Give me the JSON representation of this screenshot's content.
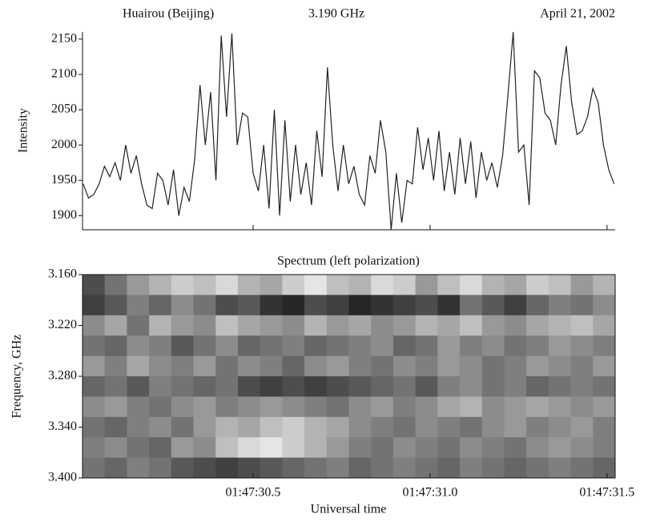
{
  "chart_data": [
    {
      "type": "line",
      "annotations": [
        "Huairou (Beijing)",
        "3.190 GHz",
        "April 21, 2002"
      ],
      "ylabel": "Intensity",
      "x": [
        30.02,
        30.035,
        30.05,
        30.065,
        30.08,
        30.095,
        30.11,
        30.125,
        30.14,
        30.155,
        30.17,
        30.185,
        30.2,
        30.215,
        30.23,
        30.245,
        30.26,
        30.275,
        30.29,
        30.305,
        30.32,
        30.335,
        30.35,
        30.365,
        30.38,
        30.395,
        30.41,
        30.425,
        30.44,
        30.455,
        30.47,
        30.485,
        30.5,
        30.515,
        30.53,
        30.545,
        30.56,
        30.575,
        30.59,
        30.605,
        30.62,
        30.635,
        30.65,
        30.665,
        30.68,
        30.695,
        30.71,
        30.725,
        30.74,
        30.755,
        30.77,
        30.785,
        30.8,
        30.815,
        30.83,
        30.845,
        30.86,
        30.875,
        30.89,
        30.905,
        30.92,
        30.935,
        30.95,
        30.965,
        30.98,
        30.995,
        31.01,
        31.025,
        31.04,
        31.055,
        31.07,
        31.085,
        31.1,
        31.115,
        31.13,
        31.145,
        31.16,
        31.175,
        31.19,
        31.205,
        31.22,
        31.235,
        31.25,
        31.265,
        31.28,
        31.295,
        31.31,
        31.325,
        31.34,
        31.355,
        31.37,
        31.385,
        31.4,
        31.415,
        31.43,
        31.445,
        31.46,
        31.475,
        31.49,
        31.505,
        31.52
      ],
      "series": [
        {
          "color": "#222222",
          "values": [
            1945,
            1925,
            1930,
            1945,
            1970,
            1955,
            1975,
            1950,
            2000,
            1960,
            1985,
            1945,
            1915,
            1910,
            1960,
            1950,
            1915,
            1965,
            1900,
            1940,
            1920,
            1980,
            2085,
            2000,
            2075,
            1950,
            2155,
            2040,
            2158,
            2000,
            2045,
            2040,
            1960,
            1935,
            2000,
            1910,
            2050,
            1900,
            2035,
            1920,
            2000,
            1930,
            1975,
            1915,
            2020,
            1955,
            2110,
            2000,
            1935,
            2000,
            1945,
            1970,
            1930,
            1915,
            1985,
            1960,
            2035,
            1990,
            1880,
            1960,
            1890,
            1950,
            1945,
            2025,
            1965,
            2010,
            1950,
            2020,
            1935,
            1990,
            1930,
            2010,
            1945,
            2005,
            1925,
            1990,
            1950,
            1975,
            1940,
            1985,
            2070,
            2160,
            1990,
            2000,
            1915,
            2105,
            2095,
            2045,
            2035,
            2000,
            2085,
            2140,
            2060,
            2015,
            2020,
            2040,
            2080,
            2060,
            2000,
            1965,
            1945
          ]
        }
      ],
      "xlim": [
        30.018,
        31.523
      ],
      "xticks": [
        30.5,
        31.0,
        31.5
      ],
      "ylim": [
        1880,
        2160
      ],
      "yticks": [
        1900,
        1950,
        2000,
        2050,
        2100,
        2150
      ]
    },
    {
      "type": "heatmap",
      "title": "Spectrum (left polarization)",
      "xlabel": "Universal time",
      "ylabel": "Frequency, GHz",
      "colormap": "gray",
      "xlim": [
        30.018,
        31.523
      ],
      "xticks": [
        {
          "value": 30.5,
          "label": "01:47:30.5"
        },
        {
          "value": 31.0,
          "label": "01:47:31.0"
        },
        {
          "value": 31.5,
          "label": "01:47:31.5"
        }
      ],
      "ylim": [
        3.4,
        3.16
      ],
      "yticks": [
        {
          "value": 3.16,
          "label": "3.160"
        },
        {
          "value": 3.22,
          "label": "3.220"
        },
        {
          "value": 3.28,
          "label": "3.280"
        },
        {
          "value": 3.34,
          "label": "3.340"
        },
        {
          "value": 3.4,
          "label": "3.400"
        }
      ],
      "values": [
        [
          30,
          45,
          60,
          70,
          80,
          75,
          85,
          70,
          65,
          80,
          90,
          75,
          70,
          85,
          80,
          60,
          75,
          85,
          70,
          65,
          80,
          75,
          60,
          70
        ],
        [
          25,
          35,
          50,
          40,
          55,
          45,
          30,
          35,
          20,
          15,
          30,
          25,
          15,
          20,
          25,
          30,
          20,
          45,
          35,
          25,
          40,
          50,
          45,
          55
        ],
        [
          55,
          65,
          45,
          70,
          60,
          55,
          75,
          65,
          60,
          55,
          70,
          60,
          65,
          55,
          60,
          70,
          65,
          75,
          60,
          55,
          65,
          70,
          75,
          65
        ],
        [
          45,
          40,
          55,
          50,
          35,
          45,
          55,
          40,
          45,
          50,
          40,
          45,
          50,
          55,
          40,
          45,
          60,
          50,
          55,
          45,
          50,
          60,
          55,
          50
        ],
        [
          60,
          50,
          65,
          55,
          50,
          60,
          45,
          55,
          50,
          40,
          55,
          60,
          50,
          45,
          55,
          50,
          60,
          55,
          45,
          50,
          60,
          55,
          50,
          60
        ],
        [
          40,
          45,
          35,
          50,
          45,
          40,
          45,
          30,
          25,
          30,
          25,
          30,
          35,
          40,
          45,
          35,
          50,
          55,
          45,
          50,
          40,
          45,
          50,
          45
        ],
        [
          55,
          60,
          50,
          45,
          55,
          60,
          50,
          55,
          60,
          55,
          50,
          45,
          55,
          60,
          50,
          55,
          65,
          70,
          55,
          60,
          65,
          60,
          55,
          60
        ],
        [
          45,
          40,
          50,
          55,
          45,
          60,
          70,
          65,
          75,
          80,
          70,
          65,
          55,
          50,
          45,
          55,
          50,
          45,
          55,
          60,
          50,
          55,
          60,
          50
        ],
        [
          50,
          55,
          45,
          40,
          60,
          55,
          75,
          85,
          90,
          80,
          70,
          60,
          50,
          45,
          55,
          50,
          45,
          55,
          50,
          45,
          55,
          60,
          55,
          50
        ],
        [
          45,
          40,
          50,
          45,
          35,
          30,
          25,
          30,
          35,
          40,
          45,
          50,
          40,
          45,
          50,
          45,
          40,
          50,
          45,
          40,
          45,
          50,
          45,
          40
        ]
      ]
    }
  ]
}
